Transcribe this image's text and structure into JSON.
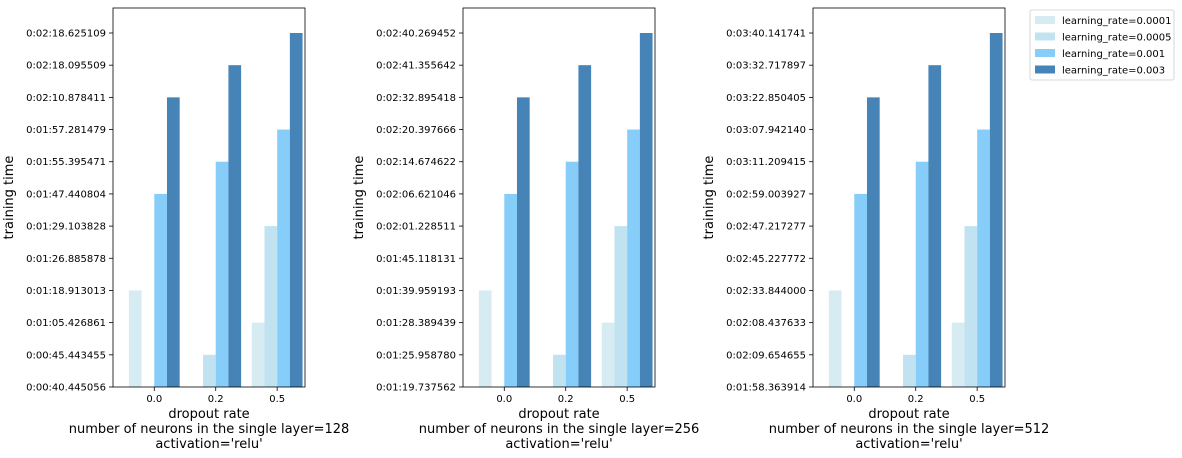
{
  "chart_data": [
    {
      "type": "bar",
      "categories": [
        "0.0",
        "0.2",
        "0.5"
      ],
      "ylabel": "training time",
      "xlabel_lines": [
        "dropout rate",
        "number of neurons in the single layer=128",
        "activation='relu'"
      ],
      "yticks": [
        "0:00:40.445056",
        "0:00:45.443455",
        "0:01:05.426861",
        "0:01:18.913013",
        "0:01:26.885878",
        "0:01:29.103828",
        "0:01:47.440804",
        "0:01:55.395471",
        "0:01:57.281479",
        "0:02:10.878411",
        "0:02:18.095509",
        "0:02:18.625109"
      ],
      "series": [
        {
          "name": "learning_rate=0.0001",
          "values": [
            "0:01:18.913013",
            "0:00:40.445056",
            "0:01:05.426861"
          ]
        },
        {
          "name": "learning_rate=0.0005",
          "values": [
            "0:00:40.445056",
            "0:00:45.443455",
            "0:01:29.103828"
          ]
        },
        {
          "name": "learning_rate=0.001",
          "values": [
            "0:01:47.440804",
            "0:01:55.395471",
            "0:01:57.281479"
          ]
        },
        {
          "name": "learning_rate=0.003",
          "values": [
            "0:02:10.878411",
            "0:02:18.095509",
            "0:02:18.625109"
          ]
        }
      ]
    },
    {
      "type": "bar",
      "categories": [
        "0.0",
        "0.2",
        "0.5"
      ],
      "ylabel": "training time",
      "xlabel_lines": [
        "dropout rate",
        "number of neurons in the single layer=256",
        "activation='relu'"
      ],
      "yticks": [
        "0:01:19.737562",
        "0:01:25.958780",
        "0:01:28.389439",
        "0:01:39.959193",
        "0:01:45.118131",
        "0:02:01.228511",
        "0:02:06.621046",
        "0:02:14.674622",
        "0:02:20.397666",
        "0:02:32.895418",
        "0:02:41.355642",
        "0:02:40.269452"
      ],
      "series": [
        {
          "name": "learning_rate=0.0001",
          "values": [
            "0:01:39.959193",
            "0:01:19.737562",
            "0:01:28.389439"
          ]
        },
        {
          "name": "learning_rate=0.0005",
          "values": [
            "0:01:19.737562",
            "0:01:25.958780",
            "0:02:01.228511"
          ]
        },
        {
          "name": "learning_rate=0.001",
          "values": [
            "0:02:06.621046",
            "0:02:14.674622",
            "0:02:20.397666"
          ]
        },
        {
          "name": "learning_rate=0.003",
          "values": [
            "0:02:32.895418",
            "0:02:41.355642",
            "0:02:40.269452"
          ]
        }
      ]
    },
    {
      "type": "bar",
      "categories": [
        "0.0",
        "0.2",
        "0.5"
      ],
      "ylabel": "training time",
      "xlabel_lines": [
        "dropout rate",
        "number of neurons in the single layer=512",
        "activation='relu'"
      ],
      "yticks": [
        "0:01:58.363914",
        "0:02:09.654655",
        "0:02:08.437633",
        "0:02:33.844000",
        "0:02:45.227772",
        "0:02:47.217277",
        "0:02:59.003927",
        "0:03:11.209415",
        "0:03:07.942140",
        "0:03:22.850405",
        "0:03:32.717897",
        "0:03:40.141741"
      ],
      "series": [
        {
          "name": "learning_rate=0.0001",
          "values": [
            "0:02:33.844000",
            "0:01:58.363914",
            "0:02:08.437633"
          ]
        },
        {
          "name": "learning_rate=0.0005",
          "values": [
            "0:01:58.363914",
            "0:02:09.654655",
            "0:02:47.217277"
          ]
        },
        {
          "name": "learning_rate=0.001",
          "values": [
            "0:02:59.003927",
            "0:03:11.209415",
            "0:03:07.942140"
          ]
        },
        {
          "name": "learning_rate=0.003",
          "values": [
            "0:03:22.850405",
            "0:03:32.717897",
            "0:03:40.141741"
          ]
        }
      ]
    }
  ],
  "legend": {
    "placement": "upper-right, outside plots",
    "entries": [
      "learning_rate=0.0001",
      "learning_rate=0.0005",
      "learning_rate=0.001",
      "learning_rate=0.003"
    ]
  },
  "colors": [
    "#d6ebf2",
    "#c1e3f1",
    "#87cdf9",
    "#4683b7"
  ]
}
